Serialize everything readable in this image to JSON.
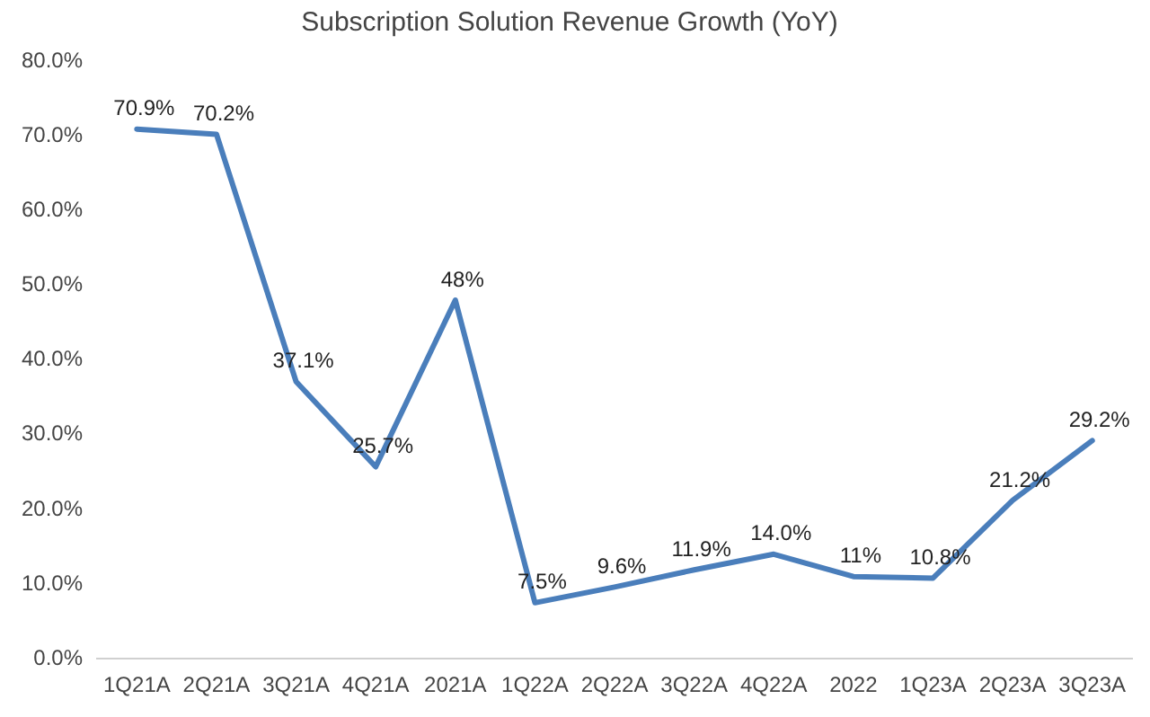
{
  "chart_data": {
    "type": "line",
    "title": "Subscription Solution Revenue Growth (YoY)",
    "categories": [
      "1Q21A",
      "2Q21A",
      "3Q21A",
      "4Q21A",
      "2021A",
      "1Q22A",
      "2Q22A",
      "3Q22A",
      "4Q22A",
      "2022",
      "1Q23A",
      "2Q23A",
      "3Q23A"
    ],
    "series": [
      {
        "color": "#4a7ebb",
        "values": [
          70.9,
          70.2,
          37.1,
          25.7,
          48,
          7.5,
          9.6,
          11.9,
          14.0,
          11,
          10.8,
          21.2,
          29.2
        ],
        "value_labels": [
          "70.9%",
          "70.2%",
          "37.1%",
          "25.7%",
          "48%",
          "7.5%",
          "9.6%",
          "11.9%",
          "14.0%",
          "11%",
          "10.8%",
          "21.2%",
          "29.2%"
        ]
      }
    ],
    "ylim": [
      0,
      80
    ],
    "yticks": [
      {
        "value": 0,
        "label": "0.0%"
      },
      {
        "value": 10,
        "label": "10.0%"
      },
      {
        "value": 20,
        "label": "20.0%"
      },
      {
        "value": 30,
        "label": "30.0%"
      },
      {
        "value": 40,
        "label": "40.0%"
      },
      {
        "value": 50,
        "label": "50.0%"
      },
      {
        "value": 60,
        "label": "60.0%"
      },
      {
        "value": 70,
        "label": "70.0%"
      },
      {
        "value": 80,
        "label": "80.0%"
      }
    ],
    "grid": false,
    "legend": false,
    "marker": "none",
    "line_style": "solid"
  }
}
